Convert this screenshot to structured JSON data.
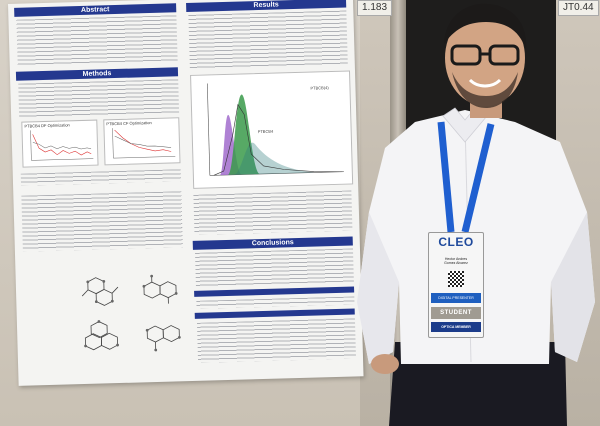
{
  "booth": {
    "number_left": "1.183",
    "number_right": "JT0.44"
  },
  "poster": {
    "sections": {
      "abstract": "Abstract",
      "methods": "Methods",
      "results": "Results",
      "conclusions": "Conclusions"
    },
    "chart_titles": {
      "left": "PTBCB4 DF Optimization",
      "right": "PTBCB4 CF Optimization"
    },
    "molecule_labels": [
      "PTBCB4",
      "PTBCB(4)"
    ]
  },
  "badge": {
    "logo": "CLEO",
    "name_line1": "Hector Andres",
    "name_line2": "Gomez Alvarez",
    "blue_line": "DIGITAL PRESENTER",
    "student": "STUDENT",
    "member": "OPTICA MEMBER"
  },
  "colors": {
    "poster_bar": "#24388f",
    "badge_blue": "#1f5fbf",
    "lanyard": "#1f5fd0"
  },
  "icons": [
    "molecule-icon",
    "qr-code-icon"
  ]
}
